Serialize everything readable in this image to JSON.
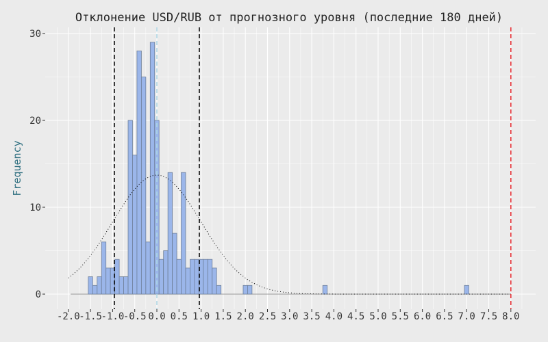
{
  "chart_data": {
    "type": "bar",
    "title": "Отклонение USD/RUB от прогнозного уровня (последние 180 дней)",
    "xlabel": "",
    "ylabel": "Frequency",
    "xlim": [
      -2.0,
      8.0
    ],
    "ylim": [
      0,
      30
    ],
    "bin_width": 0.1,
    "bin_centers": [
      -1.5,
      -1.4,
      -1.3,
      -1.2,
      -1.1,
      -1.0,
      -0.9,
      -0.8,
      -0.7,
      -0.6,
      -0.5,
      -0.4,
      -0.3,
      -0.2,
      -0.1,
      0.0,
      0.1,
      0.2,
      0.3,
      0.4,
      0.5,
      0.6,
      0.7,
      0.8,
      0.9,
      1.0,
      1.1,
      1.2,
      1.3,
      1.4,
      2.0,
      2.1,
      3.8,
      7.0
    ],
    "counts": [
      2,
      1,
      2,
      6,
      3,
      3,
      4,
      2,
      2,
      20,
      16,
      28,
      25,
      6,
      29,
      20,
      4,
      5,
      14,
      7,
      4,
      14,
      3,
      4,
      4,
      4,
      4,
      4,
      3,
      1,
      1,
      1,
      1,
      1
    ],
    "x_ticks": [
      "-2.0",
      "-1.5",
      "-1.0",
      "-0.5",
      "0.0",
      "0.5",
      "1.0",
      "1.5",
      "2.0",
      "2.5",
      "3.0",
      "3.5",
      "4.0",
      "4.5",
      "5.0",
      "5.5",
      "6.0",
      "6.5",
      "7.0",
      "7.5",
      "8.0"
    ],
    "y_ticks": [
      "0",
      "10",
      "20",
      "30"
    ],
    "normal_curve": {
      "mean": 0.0,
      "sd": 1.0,
      "peak": 13.7,
      "style": "dotted"
    },
    "vlines": [
      {
        "x": -0.96,
        "color": "#000000",
        "style": "dashed"
      },
      {
        "x": 0.96,
        "color": "#000000",
        "style": "dashed"
      },
      {
        "x": 0.0,
        "color": "#add8e6",
        "style": "dashed"
      },
      {
        "x": 8.0,
        "color": "#e8262b",
        "style": "dashed"
      }
    ],
    "grid": true,
    "colors": {
      "bar_fill": "#9bb6ea",
      "bar_stroke": "#6e7f99",
      "background": "#ebebeb",
      "grid": "#ffffff",
      "ylabel": "#2e6f80"
    }
  }
}
